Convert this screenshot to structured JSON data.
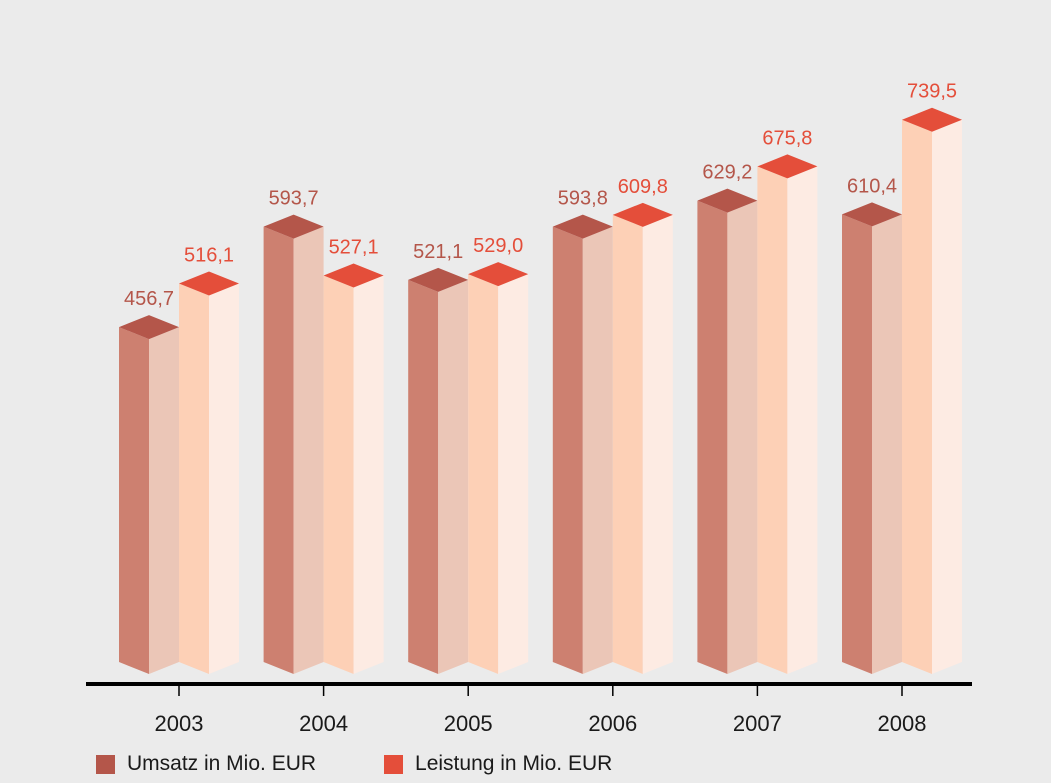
{
  "chart_data": {
    "type": "bar",
    "categories": [
      "2003",
      "2004",
      "2005",
      "2006",
      "2007",
      "2008"
    ],
    "series": [
      {
        "name": "Umsatz in Mio. EUR",
        "values": [
          456.7,
          593.7,
          521.1,
          593.8,
          629.2,
          610.4
        ],
        "labels": [
          "456,7",
          "593,7",
          "521,1",
          "593,8",
          "629,2",
          "610,4"
        ]
      },
      {
        "name": "Leistung in Mio. EUR",
        "values": [
          516.1,
          527.1,
          529.0,
          609.8,
          675.8,
          739.5
        ],
        "labels": [
          "516,1",
          "527,1",
          "529,0",
          "609,8",
          "675,8",
          "739,5"
        ]
      }
    ],
    "title": "",
    "xlabel": "",
    "ylabel": "",
    "ylim": [
      0,
      800
    ],
    "grid": false,
    "legend_position": "bottom-left",
    "colors": {
      "umsatz_front": "#cd8070",
      "umsatz_side": "#ebc6b7",
      "umsatz_top": "#b4564a",
      "umsatz_label": "#b4564a",
      "leistung_front": "#fdd0b6",
      "leistung_side": "#fdebe3",
      "leistung_top": "#e44e3a",
      "leistung_label": "#e44e3a",
      "axis": "#000000",
      "background": "#ebebeb"
    }
  },
  "legend": {
    "umsatz_label": "Umsatz in Mio. EUR",
    "leistung_label": "Leistung in Mio. EUR"
  }
}
